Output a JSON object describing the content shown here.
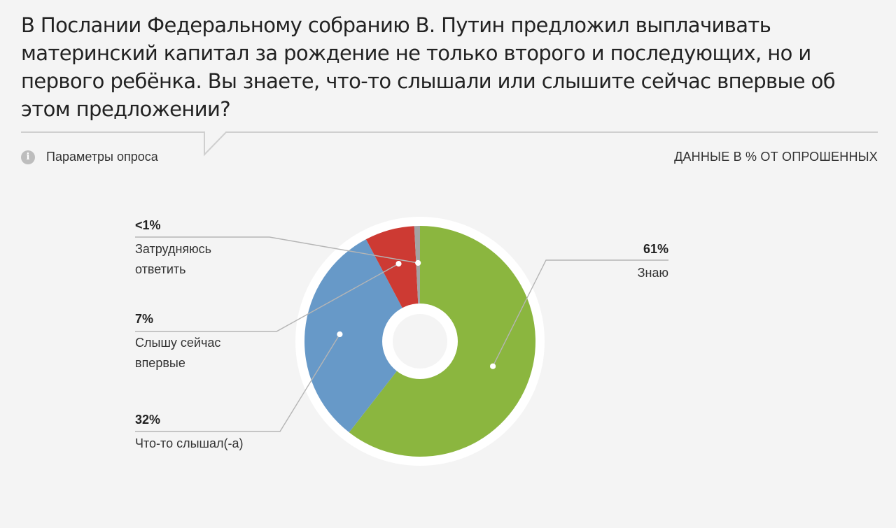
{
  "header": {
    "title": "В Послании Федеральному собранию В. Путин предложил выплачивать материнский капитал за рождение не только второго и последующих, но и первого ребёнка. Вы знаете, что-то слышали или слышите сейчас впервые об этом предложении?",
    "params_label": "Параметры опроса",
    "info_icon_glyph": "i",
    "units_label": "ДАННЫЕ В % ОТ ОПРОШЕННЫХ"
  },
  "chart_data": {
    "type": "pie",
    "donut": true,
    "categories": [
      "Знаю",
      "Что-то слышал(-а)",
      "Слышу сейчас впервые",
      "Затрудняюсь ответить"
    ],
    "values": [
      61,
      32,
      7,
      0.8
    ],
    "value_labels": [
      "61%",
      "32%",
      "7%",
      "<1%"
    ],
    "label_lines": [
      [
        "Знаю"
      ],
      [
        "Что-то слышал(-а)"
      ],
      [
        "Слышу сейчас",
        "впервые"
      ],
      [
        "Затрудняюсь",
        "ответить"
      ]
    ],
    "colors": [
      "#8bb63f",
      "#6799c8",
      "#cd3a33",
      "#a3a3a3"
    ]
  },
  "style": {
    "background": "#f4f4f4",
    "text_color": "#222222",
    "line_color": "#b5b5b5"
  }
}
